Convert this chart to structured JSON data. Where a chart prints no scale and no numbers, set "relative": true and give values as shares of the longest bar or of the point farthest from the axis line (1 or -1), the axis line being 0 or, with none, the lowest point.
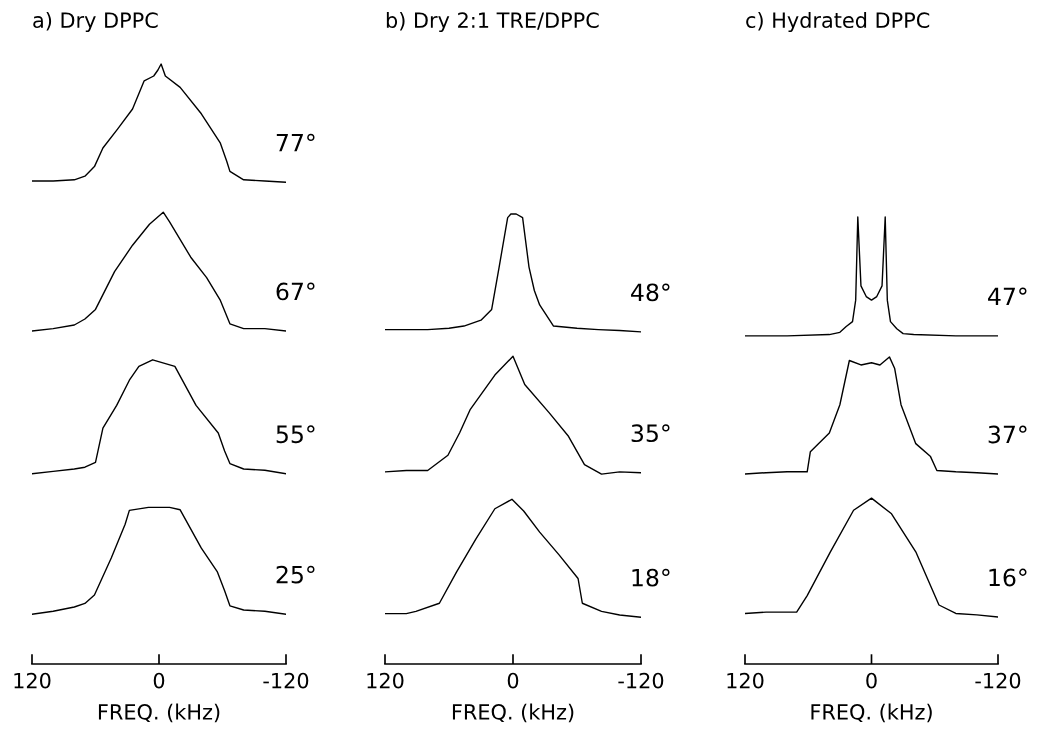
{
  "chart_data": [
    {
      "type": "line",
      "title": "a) Dry DPPC",
      "relative": true,
      "xlim": [
        120,
        -120
      ],
      "xticks": [
        120,
        0,
        -120
      ],
      "xlabel": "FREQ. (kHz)",
      "series": [
        {
          "name": "77°",
          "color": "#000000",
          "x": [
            120,
            100,
            80,
            70,
            61,
            53,
            39,
            25,
            14,
            5,
            1,
            -2,
            -6,
            -20,
            -40,
            -58,
            -64,
            -67,
            -80,
            -100,
            -120
          ],
          "values": [
            0.805,
            0.805,
            0.807,
            0.813,
            0.829,
            0.86,
            0.892,
            0.925,
            0.972,
            0.98,
            0.99,
            1.0,
            0.98,
            0.961,
            0.917,
            0.868,
            0.838,
            0.821,
            0.807,
            0.805,
            0.803
          ]
        },
        {
          "name": "67°",
          "color": "#000000",
          "x": [
            120,
            100,
            80,
            70,
            60,
            42,
            25,
            9,
            -4,
            -10,
            -30,
            -45,
            -58,
            -67,
            -80,
            -100,
            -120
          ],
          "values": [
            0.555,
            0.559,
            0.565,
            0.575,
            0.591,
            0.654,
            0.698,
            0.733,
            0.753,
            0.737,
            0.678,
            0.644,
            0.606,
            0.567,
            0.559,
            0.559,
            0.555
          ]
        },
        {
          "name": "55°",
          "color": "#000000",
          "x": [
            120,
            100,
            80,
            70,
            60,
            53,
            40,
            28,
            19,
            6,
            -15,
            -35,
            -56,
            -62,
            -67,
            -80,
            -100,
            -120
          ],
          "values": [
            0.317,
            0.321,
            0.325,
            0.328,
            0.336,
            0.393,
            0.431,
            0.473,
            0.496,
            0.507,
            0.496,
            0.431,
            0.385,
            0.355,
            0.334,
            0.325,
            0.323,
            0.317
          ]
        },
        {
          "name": "25°",
          "color": "#000000",
          "x": [
            120,
            100,
            80,
            70,
            61,
            45,
            32,
            28,
            10,
            0,
            -10,
            -20,
            -40,
            -55,
            -62,
            -67,
            -80,
            -100,
            -120
          ],
          "values": [
            0.083,
            0.088,
            0.095,
            0.101,
            0.115,
            0.177,
            0.233,
            0.256,
            0.261,
            0.261,
            0.261,
            0.257,
            0.193,
            0.154,
            0.122,
            0.097,
            0.09,
            0.088,
            0.083
          ]
        }
      ]
    },
    {
      "type": "line",
      "title": "b) Dry 2:1 TRE/DPPC",
      "relative": true,
      "xlim": [
        120,
        -120
      ],
      "xticks": [
        120,
        0,
        -120
      ],
      "xlabel": "FREQ. (kHz)",
      "series": [
        {
          "name": "48°",
          "color": "#000000",
          "x": [
            120,
            100,
            80,
            60,
            46,
            30,
            20,
            13,
            5,
            2,
            -3,
            -9,
            -15,
            -20,
            -25,
            -38,
            -60,
            -80,
            -100,
            -120
          ],
          "values": [
            0.743,
            0.743,
            0.743,
            0.746,
            0.751,
            0.764,
            0.788,
            0.882,
            0.992,
            1.0,
            1.0,
            0.992,
            0.882,
            0.83,
            0.798,
            0.751,
            0.746,
            0.743,
            0.741,
            0.738
          ]
        },
        {
          "name": "35°",
          "color": "#000000",
          "x": [
            120,
            100,
            80,
            61,
            50,
            40,
            17,
            0,
            -11,
            -34,
            -52,
            -67,
            -83,
            -100,
            -120
          ],
          "values": [
            0.427,
            0.43,
            0.43,
            0.464,
            0.514,
            0.566,
            0.642,
            0.684,
            0.621,
            0.558,
            0.506,
            0.443,
            0.422,
            0.427,
            0.425
          ]
        },
        {
          "name": "18°",
          "color": "#000000",
          "x": [
            120,
            100,
            91,
            69,
            53,
            35,
            17,
            1,
            -10,
            -25,
            -43,
            -61,
            -65,
            -83,
            -100,
            -120
          ],
          "values": [
            0.112,
            0.112,
            0.117,
            0.135,
            0.204,
            0.277,
            0.345,
            0.366,
            0.34,
            0.293,
            0.243,
            0.19,
            0.135,
            0.117,
            0.109,
            0.104
          ]
        }
      ]
    },
    {
      "type": "line",
      "title": "c) Hydrated DPPC",
      "relative": true,
      "xlim": [
        120,
        -120
      ],
      "xticks": [
        120,
        0,
        -120
      ],
      "xlabel": "FREQ. (kHz)",
      "series": [
        {
          "name": "47°",
          "color": "#000000",
          "x": [
            120,
            80,
            40,
            30,
            24,
            18,
            15,
            13,
            10,
            5,
            0,
            -5,
            -10,
            -13,
            -15,
            -18,
            -24,
            -30,
            -40,
            -80,
            -120
          ],
          "values": [
            0.734,
            0.734,
            0.737,
            0.742,
            0.755,
            0.766,
            0.814,
            1.0,
            0.846,
            0.822,
            0.814,
            0.822,
            0.846,
            1.0,
            0.814,
            0.766,
            0.75,
            0.739,
            0.737,
            0.734,
            0.734
          ]
        },
        {
          "name": "37°",
          "color": "#000000",
          "x": [
            120,
            100,
            80,
            61,
            58,
            40,
            30,
            21,
            10,
            0,
            -8,
            -17,
            -22,
            -28,
            -42,
            -56,
            -62,
            -80,
            -100,
            -120
          ],
          "values": [
            0.425,
            0.428,
            0.43,
            0.43,
            0.475,
            0.517,
            0.58,
            0.679,
            0.669,
            0.674,
            0.669,
            0.687,
            0.661,
            0.58,
            0.493,
            0.464,
            0.433,
            0.43,
            0.428,
            0.425
          ]
        },
        {
          "name": "16°",
          "color": "#000000",
          "x": [
            120,
            100,
            71,
            61,
            39,
            17,
            0,
            -19,
            -42,
            -64,
            -80,
            -100,
            -120
          ],
          "values": [
            0.113,
            0.116,
            0.116,
            0.153,
            0.251,
            0.344,
            0.371,
            0.336,
            0.251,
            0.132,
            0.113,
            0.11,
            0.105
          ]
        }
      ]
    }
  ]
}
